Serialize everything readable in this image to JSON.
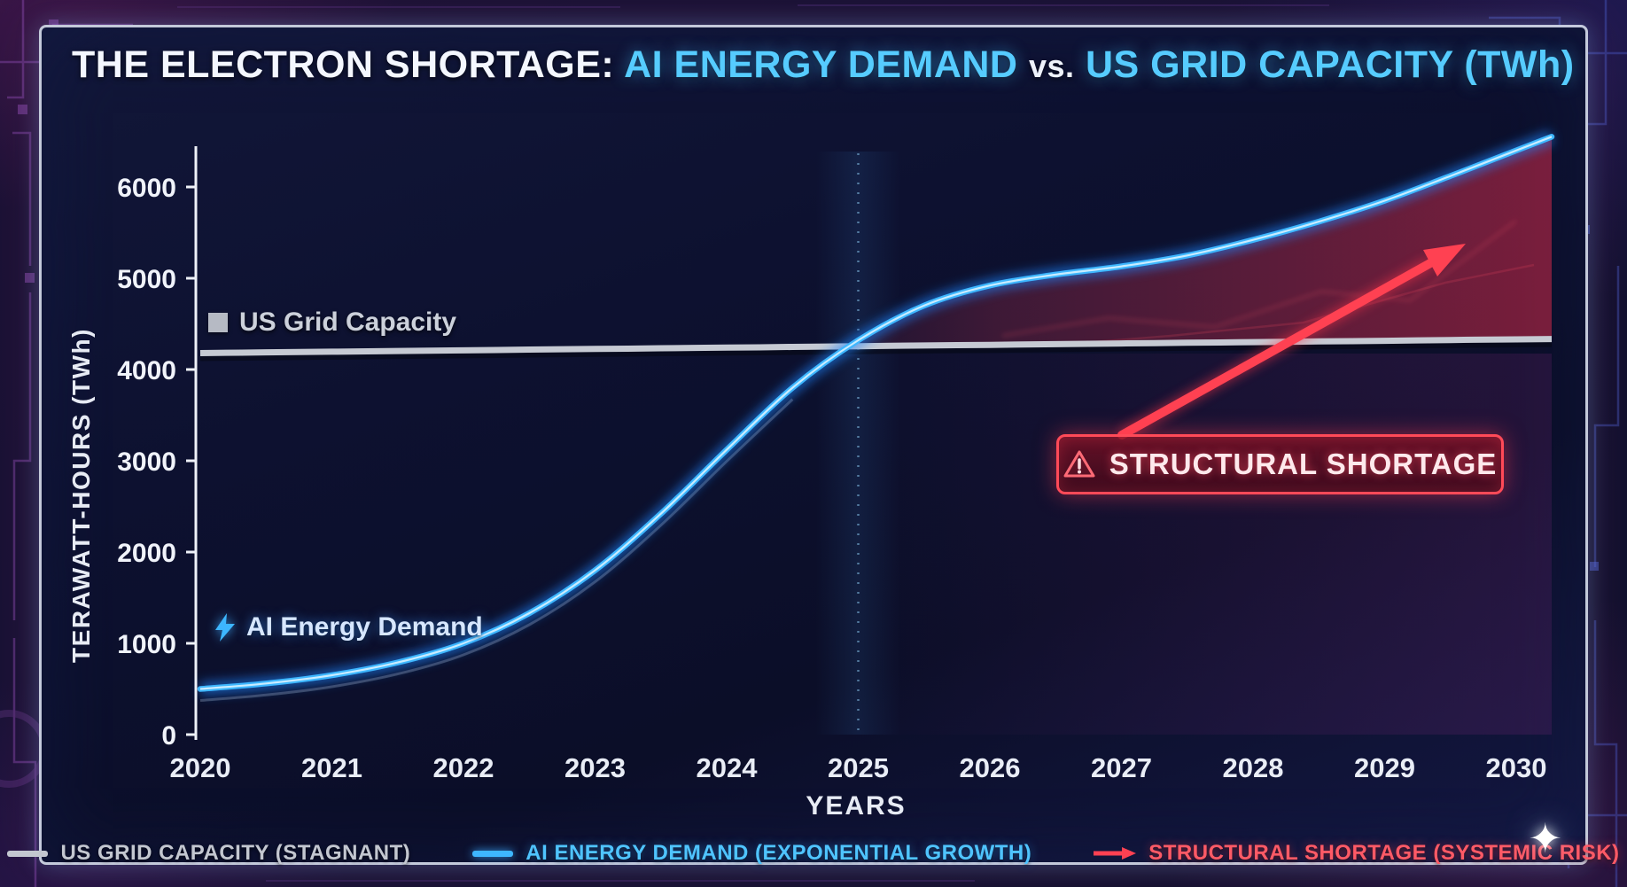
{
  "title": {
    "prefix": "THE ELECTRON SHORTAGE:",
    "segment_ai": "AI ENERGY DEMAND",
    "vs": "vs.",
    "segment_grid": "US GRID CAPACITY (TWh)"
  },
  "axes": {
    "y_label": "TERAWATT-HOURS (TWh)",
    "x_label": "YEARS"
  },
  "chart_annotations": {
    "grid_capacity": "US Grid Capacity",
    "ai_demand": "AI Energy Demand",
    "shortage": "STRUCTURAL SHORTAGE"
  },
  "legend": {
    "grid": "US GRID CAPACITY (STAGNANT)",
    "demand": "AI ENERGY DEMAND (EXPONENTIAL GROWTH)",
    "shortage": "STRUCTURAL SHORTAGE (SYSTEMIC RISK)"
  },
  "icons": {
    "sparkle": "✦"
  },
  "colors": {
    "demand_line": "#3eb7ff",
    "capacity_line": "#c6cad3",
    "shortage_red": "#ff4152",
    "accent_cyan": "#56ccff"
  },
  "chart_data": {
    "type": "line",
    "x": [
      2020,
      2020.5,
      2021,
      2021.5,
      2022,
      2022.5,
      2023,
      2023.5,
      2024,
      2024.5,
      2025,
      2025.5,
      2026,
      2026.5,
      2027,
      2027.5,
      2028,
      2028.5,
      2029,
      2029.5,
      2030
    ],
    "series": [
      {
        "name": "US Grid Capacity",
        "values": [
          4180,
          4188,
          4195,
          4203,
          4210,
          4218,
          4225,
          4233,
          4240,
          4248,
          4255,
          4263,
          4270,
          4278,
          4285,
          4293,
          4300,
          4308,
          4315,
          4323,
          4330
        ]
      },
      {
        "name": "AI Energy Demand",
        "values": [
          500,
          560,
          650,
          790,
          1000,
          1330,
          1800,
          2420,
          3120,
          3800,
          4320,
          4700,
          4920,
          5040,
          5130,
          5250,
          5420,
          5620,
          5850,
          6120,
          6400
        ]
      }
    ],
    "title": "THE ELECTRON SHORTAGE: AI ENERGY DEMAND vs. US GRID CAPACITY (TWh)",
    "xlabel": "YEARS",
    "ylabel": "TERAWATT-HOURS (TWh)",
    "xlim": [
      2020,
      2030
    ],
    "ylim": [
      0,
      6400
    ],
    "y_ticks": [
      0,
      1000,
      2000,
      3000,
      4000,
      5000,
      6000
    ],
    "x_ticks": [
      2020,
      2021,
      2022,
      2023,
      2024,
      2025,
      2026,
      2027,
      2028,
      2029,
      2030
    ],
    "grid": false,
    "legend_position": "bottom",
    "event_marker_x": 2025,
    "shortage_region": {
      "description": "area where AI Energy Demand exceeds US Grid Capacity",
      "from_x": 2025,
      "to_x": 2030
    }
  }
}
